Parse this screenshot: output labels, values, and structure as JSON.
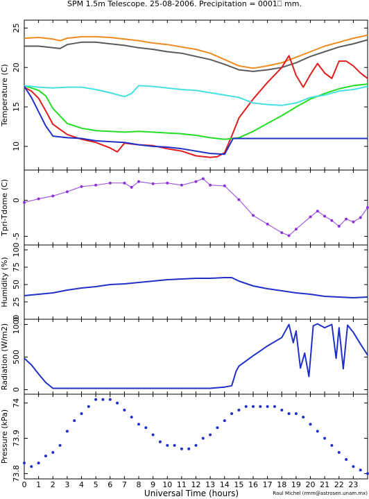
{
  "figure": {
    "title": "SPM 1.5m Telescope. 25-08-2006. Precipitation = 0001⎕ mm.",
    "xlabel": "Universal Time (hours)",
    "credit": "Raul Michel (rmm@astrosen.unam.mx)",
    "x_ticks": [
      0,
      1,
      2,
      3,
      4,
      5,
      6,
      7,
      8,
      9,
      10,
      11,
      12,
      13,
      14,
      15,
      16,
      17,
      18,
      19,
      20,
      21,
      22,
      23
    ]
  },
  "chart_data": [
    {
      "type": "line",
      "ylabel": "Temperature (C)",
      "xlim": [
        0,
        24
      ],
      "ylim": [
        7,
        26
      ],
      "yticks": [
        10,
        15,
        20,
        25
      ],
      "series": [
        {
          "color": "#ee8a1e",
          "x": [
            0,
            1,
            2,
            2.5,
            3,
            4,
            5,
            6,
            7,
            8,
            9,
            10,
            11,
            12,
            13,
            14,
            15,
            16,
            17,
            18,
            19,
            20,
            21,
            22,
            23,
            24
          ],
          "y": [
            23.7,
            23.8,
            23.6,
            23.4,
            23.7,
            23.9,
            23.9,
            23.8,
            23.6,
            23.4,
            23.1,
            22.9,
            22.6,
            22.3,
            21.8,
            21,
            20.2,
            19.9,
            20.2,
            20.6,
            21.3,
            22,
            22.7,
            23.2,
            23.7,
            24.1
          ]
        },
        {
          "color": "#5a5a5a",
          "x": [
            0,
            1,
            2,
            2.5,
            3,
            4,
            5,
            6,
            7,
            8,
            9,
            10,
            11,
            12,
            13,
            14,
            15,
            16,
            17,
            18,
            19,
            20,
            21,
            22,
            23,
            24
          ],
          "y": [
            22.7,
            22.7,
            22.5,
            22.4,
            22.9,
            23.2,
            23.2,
            23,
            22.8,
            22.5,
            22.3,
            22,
            21.8,
            21.4,
            21,
            20.4,
            19.7,
            19.5,
            19.7,
            20,
            20.6,
            21.4,
            22,
            22.6,
            23,
            23.5
          ]
        },
        {
          "color": "#e01b1b",
          "x": [
            0,
            0.5,
            1,
            1.5,
            2,
            3,
            4,
            5,
            6,
            6.5,
            7,
            8,
            9,
            10,
            11,
            12,
            13,
            13.5,
            14,
            14.5,
            15,
            16,
            17,
            18,
            18.5,
            19,
            19.5,
            20,
            20.5,
            21,
            21.5,
            22,
            22.5,
            23,
            23.5,
            24
          ],
          "y": [
            17.5,
            17,
            16.1,
            14.5,
            12.8,
            11.5,
            10.9,
            10.5,
            9.8,
            9.3,
            10.4,
            10.2,
            10.1,
            9.7,
            9.4,
            8.8,
            8.6,
            8.7,
            9.2,
            11.3,
            13.6,
            16,
            18.1,
            20,
            21.5,
            19,
            17.5,
            19.1,
            20.5,
            19.3,
            18.6,
            20.8,
            20.8,
            20.2,
            19.3,
            18.6
          ]
        },
        {
          "color": "#22dd22",
          "x": [
            0,
            1,
            1.5,
            2,
            3,
            4,
            5,
            6,
            7,
            8,
            9,
            10,
            11,
            12,
            13,
            14,
            15,
            16,
            17,
            18,
            19,
            20,
            21,
            22,
            23,
            24
          ],
          "y": [
            17.7,
            17.1,
            16.4,
            14.8,
            12.9,
            12.3,
            12,
            11.9,
            11.8,
            11.9,
            11.8,
            11.7,
            11.6,
            11.4,
            11.1,
            10.9,
            11.1,
            11.9,
            12.9,
            13.9,
            15,
            16,
            16.7,
            17.3,
            17.7,
            17.9
          ]
        },
        {
          "color": "#44e0e0",
          "x": [
            0,
            1,
            2,
            3,
            4,
            5,
            6,
            7,
            7.5,
            8,
            9,
            10,
            11,
            12,
            13,
            14,
            15,
            16,
            17,
            18,
            19,
            20,
            21,
            22,
            23,
            24
          ],
          "y": [
            17.7,
            17.5,
            17.4,
            17.5,
            17.5,
            17.2,
            16.8,
            16.3,
            16.7,
            17.7,
            17.6,
            17.4,
            17.2,
            17.1,
            16.8,
            16.5,
            16.2,
            15.5,
            15.3,
            15.2,
            15.5,
            16.2,
            16.5,
            17,
            17.2,
            17.6
          ]
        },
        {
          "color": "#1f2fc8",
          "x": [
            0,
            0.5,
            1,
            1.5,
            2,
            3,
            4,
            5,
            6,
            7,
            8,
            9,
            10,
            11,
            12,
            13,
            14,
            14.6,
            15,
            16,
            17,
            18,
            19,
            20,
            21,
            22,
            23,
            24
          ],
          "y": [
            17.6,
            16.2,
            14.4,
            12.6,
            11.3,
            11.1,
            11,
            10.7,
            10.6,
            10.5,
            10.2,
            10,
            9.9,
            9.7,
            9.4,
            9.1,
            9,
            11,
            11,
            11,
            11,
            11,
            11,
            11,
            11,
            11,
            11,
            11
          ]
        }
      ]
    },
    {
      "type": "scatter",
      "ylabel": "Tpri-Tdome (C)",
      "xlim": [
        0,
        24
      ],
      "ylim": [
        -6.2,
        4.2
      ],
      "yticks": [
        -5,
        0
      ],
      "series": [
        {
          "color": "#8a33d6",
          "x": [
            0,
            1,
            2,
            3,
            4,
            5,
            6,
            7,
            7.5,
            8,
            9,
            10,
            11,
            12,
            12.5,
            13,
            14,
            15,
            16,
            17,
            18,
            18.5,
            19,
            20,
            20.5,
            21,
            21.5,
            22,
            22.5,
            23,
            23.5,
            24
          ],
          "y": [
            -0.3,
            0.2,
            0.6,
            1.2,
            1.9,
            2.1,
            2.4,
            2.4,
            1.8,
            2.6,
            2.3,
            2.4,
            2.1,
            2.6,
            3,
            2.1,
            2,
            0.1,
            -2.1,
            -3.3,
            -4.5,
            -4.9,
            -4,
            -2.3,
            -1.5,
            -2.2,
            -2.8,
            -3.6,
            -2.6,
            -3,
            -2.4,
            -1
          ]
        }
      ]
    },
    {
      "type": "line",
      "ylabel": "Humidity (%)",
      "xlim": [
        0,
        24
      ],
      "ylim": [
        0,
        107
      ],
      "yticks": [
        0,
        25,
        50,
        75,
        100
      ],
      "series": [
        {
          "color": "#1f2fc8",
          "x": [
            0,
            1,
            2,
            3,
            4,
            5,
            6,
            7,
            8,
            9,
            10,
            11,
            12,
            13,
            14,
            14.5,
            15,
            16,
            17,
            18,
            19,
            20,
            21,
            22,
            23,
            24
          ],
          "y": [
            34,
            36,
            38,
            42,
            45,
            47,
            50,
            51,
            53,
            55,
            57,
            58,
            59,
            59,
            60,
            60,
            55,
            48,
            44,
            41,
            38,
            36,
            33,
            32,
            31,
            32
          ]
        }
      ]
    },
    {
      "type": "line",
      "ylabel": "Radiation (W/m2)",
      "xlim": [
        0,
        24
      ],
      "ylim": [
        -70,
        1080
      ],
      "yticks": [
        0,
        500,
        1000
      ],
      "series": [
        {
          "color": "#1f2fc8",
          "x": [
            0,
            0.5,
            1,
            1.5,
            2,
            3,
            4,
            5,
            6,
            7,
            8,
            9,
            10,
            11,
            12,
            13,
            14,
            14.5,
            14.8,
            15,
            16,
            17,
            18,
            18.5,
            18.8,
            19,
            19.3,
            19.6,
            19.9,
            20.2,
            20.5,
            21,
            21.5,
            21.8,
            22,
            22.3,
            22.6,
            23,
            23.5,
            24
          ],
          "y": [
            480,
            380,
            240,
            110,
            20,
            20,
            20,
            20,
            20,
            20,
            20,
            20,
            20,
            20,
            20,
            20,
            40,
            60,
            280,
            360,
            520,
            670,
            800,
            1000,
            720,
            900,
            330,
            560,
            200,
            980,
            1010,
            950,
            1000,
            480,
            950,
            320,
            990,
            880,
            700,
            530
          ]
        }
      ]
    },
    {
      "type": "scatter",
      "ylabel": "Pressure (kPa)",
      "xlim": [
        0,
        24
      ],
      "ylim": [
        73.785,
        74.025
      ],
      "yticks": [
        73.8,
        73.9,
        74.0
      ],
      "series": [
        {
          "color": "#1f2fc8",
          "x": [
            0,
            0.5,
            1,
            1.5,
            2,
            2.5,
            3,
            3.5,
            4,
            4.5,
            5,
            5.5,
            6,
            6.5,
            7,
            7.5,
            8,
            8.5,
            9,
            9.5,
            10,
            10.5,
            11,
            11.5,
            12,
            12.5,
            13,
            13.5,
            14,
            14.5,
            15,
            15.5,
            16,
            16.5,
            17,
            17.5,
            18,
            18.5,
            19,
            19.5,
            20,
            20.5,
            21,
            21.5,
            22,
            22.5,
            23,
            23.5,
            24
          ],
          "y": [
            73.83,
            73.82,
            73.83,
            73.85,
            73.86,
            73.88,
            73.92,
            73.95,
            73.97,
            73.99,
            74.01,
            74.01,
            74.01,
            74,
            73.98,
            73.96,
            73.94,
            73.93,
            73.91,
            73.89,
            73.88,
            73.88,
            73.87,
            73.87,
            73.88,
            73.9,
            73.91,
            73.93,
            73.95,
            73.97,
            73.98,
            73.99,
            73.99,
            73.99,
            73.99,
            73.99,
            73.98,
            73.97,
            73.97,
            73.96,
            73.94,
            73.92,
            73.9,
            73.88,
            73.86,
            73.84,
            73.82,
            73.81,
            73.8
          ]
        }
      ]
    }
  ]
}
